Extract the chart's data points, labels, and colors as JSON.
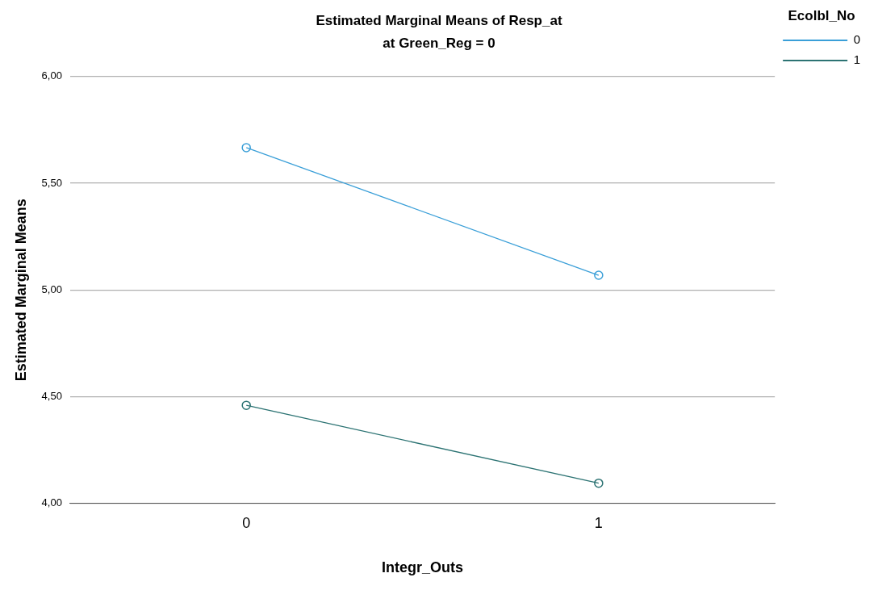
{
  "chart_data": {
    "type": "line",
    "title": "Estimated Marginal Means of Resp_at",
    "subtitle": "at Green_Reg = 0",
    "xlabel": "Integr_Outs",
    "ylabel": "Estimated Marginal Means",
    "legend_title": "Ecolbl_No",
    "categories": [
      "0",
      "1"
    ],
    "series": [
      {
        "name": "0",
        "color": "#3a9fd8",
        "values": [
          5.667,
          5.069
        ]
      },
      {
        "name": "1",
        "color": "#2c7373",
        "values": [
          4.46,
          4.095
        ]
      }
    ],
    "ylim": [
      4,
      6
    ],
    "yticks": [
      {
        "value": 4,
        "label": "4,00"
      },
      {
        "value": 4.5,
        "label": "4,50"
      },
      {
        "value": 5,
        "label": "5,00"
      },
      {
        "value": 5.5,
        "label": "5,50"
      },
      {
        "value": 6,
        "label": "6,00"
      }
    ],
    "grid": "y",
    "legend": "top right",
    "marker": "circle",
    "line_style": "solid"
  }
}
